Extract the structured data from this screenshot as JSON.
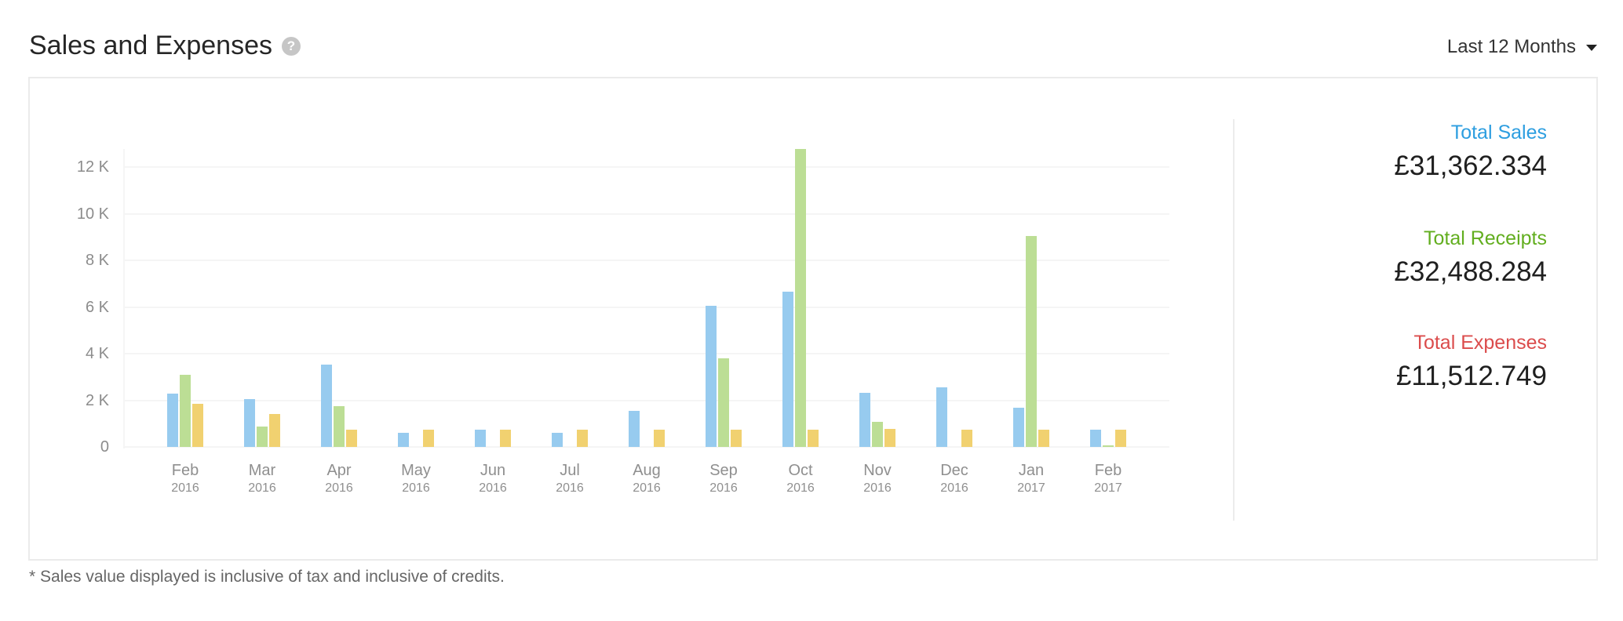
{
  "header": {
    "title": "Sales and Expenses",
    "help_icon": "question-circle-icon",
    "range_selector": {
      "selected": "Last 12 Months",
      "icon": "caret-down-icon"
    }
  },
  "summary": {
    "sales": {
      "label": "Total Sales",
      "value": "£31,362.334",
      "color": "#2d9ee0"
    },
    "receipts": {
      "label": "Total Receipts",
      "value": "£32,488.284",
      "color": "#62ae1f"
    },
    "expenses": {
      "label": "Total Expenses",
      "value": "£11,512.749",
      "color": "#db4c4c"
    }
  },
  "footnote": "* Sales value displayed is inclusive of tax and inclusive of credits.",
  "colors": {
    "sales": "#97cbef",
    "receipts": "#bcde95",
    "expenses": "#f1d170"
  },
  "chart_data": {
    "type": "bar",
    "title": "Sales and Expenses",
    "xlabel": "",
    "ylabel": "",
    "ylim": [
      0,
      12800
    ],
    "yticks": [
      "0",
      "2 K",
      "4 K",
      "6 K",
      "8 K",
      "10 K",
      "12 K"
    ],
    "ytick_values": [
      0,
      2000,
      4000,
      6000,
      8000,
      10000,
      12000
    ],
    "grid": true,
    "legend": "none (colors keyed by summary panel: Total Sales, Total Receipts, Total Expenses)",
    "categories": [
      "Feb 2016",
      "Mar 2016",
      "Apr 2016",
      "May 2016",
      "Jun 2016",
      "Jul 2016",
      "Aug 2016",
      "Sep 2016",
      "Oct 2016",
      "Nov 2016",
      "Dec 2016",
      "Jan 2017",
      "Feb 2017"
    ],
    "category_labels": [
      {
        "month": "Feb",
        "year": "2016"
      },
      {
        "month": "Mar",
        "year": "2016"
      },
      {
        "month": "Apr",
        "year": "2016"
      },
      {
        "month": "May",
        "year": "2016"
      },
      {
        "month": "Jun",
        "year": "2016"
      },
      {
        "month": "Jul",
        "year": "2016"
      },
      {
        "month": "Aug",
        "year": "2016"
      },
      {
        "month": "Sep",
        "year": "2016"
      },
      {
        "month": "Oct",
        "year": "2016"
      },
      {
        "month": "Nov",
        "year": "2016"
      },
      {
        "month": "Dec",
        "year": "2016"
      },
      {
        "month": "Jan",
        "year": "2017"
      },
      {
        "month": "Feb",
        "year": "2017"
      }
    ],
    "series": [
      {
        "name": "Sales",
        "color": "#97cbef",
        "values": [
          2280,
          2060,
          3520,
          590,
          750,
          590,
          1540,
          6050,
          6670,
          2310,
          2550,
          1670,
          730
        ]
      },
      {
        "name": "Receipts",
        "color": "#bcde95",
        "values": [
          3080,
          860,
          1760,
          0,
          0,
          0,
          0,
          3790,
          12760,
          1070,
          0,
          9050,
          70
        ]
      },
      {
        "name": "Expenses",
        "color": "#f1d170",
        "values": [
          1840,
          1400,
          740,
          740,
          740,
          740,
          740,
          740,
          740,
          760,
          750,
          750,
          750
        ]
      }
    ]
  }
}
